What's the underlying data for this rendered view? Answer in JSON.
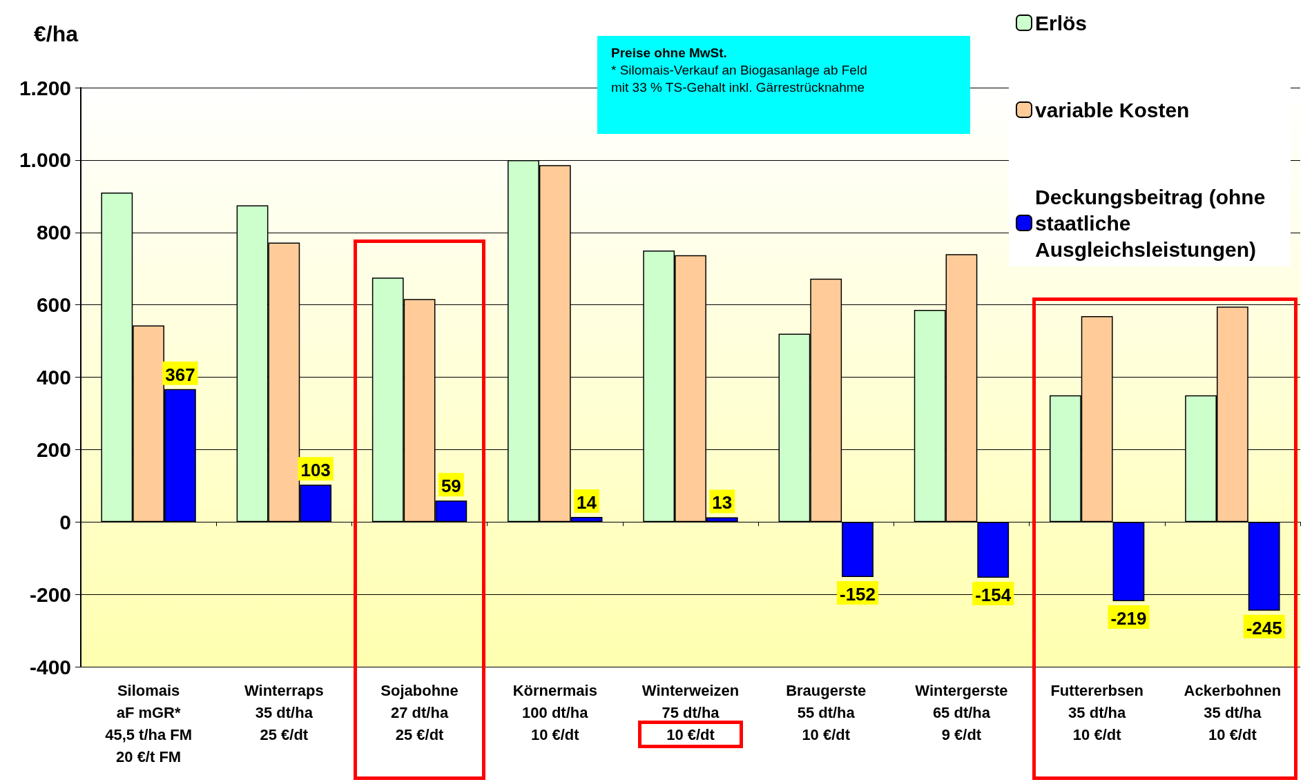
{
  "chart_data": {
    "type": "bar",
    "ylabel": "€/ha",
    "categories": [
      "Silomais\naF mGR*\n45,5 t/ha FM\n20 €/t FM",
      "Winterraps\n35 dt/ha\n25 €/dt",
      "Sojabohne\n27 dt/ha\n25 €/dt",
      "Körnermais\n100 dt/ha\n10 €/dt",
      "Winterweizen\n75 dt/ha\n10 €/dt",
      "Braugerste\n55 dt/ha\n10 €/dt",
      "Wintergerste\n65 dt/ha\n9 €/dt",
      "Futtererbsen\n35 dt/ha\n10 €/dt",
      "Ackerbohnen\n35 dt/ha\n10 €/dt"
    ],
    "series": [
      {
        "name": "Erlös",
        "color": "#ccffcc",
        "values": [
          910,
          875,
          675,
          1000,
          750,
          520,
          586,
          350,
          350
        ]
      },
      {
        "name": "variable Kosten",
        "color": "#ffcc99",
        "values": [
          543,
          772,
          616,
          986,
          737,
          672,
          740,
          569,
          595
        ]
      },
      {
        "name": "Deckungsbeitrag (ohne staatliche Ausgleichsleistungen)",
        "color": "#0000ff",
        "values": [
          367,
          103,
          59,
          14,
          13,
          -152,
          -154,
          -219,
          -245
        ],
        "value_labels": [
          "367",
          "103",
          "59",
          "14",
          "13",
          "-152",
          "-154",
          "-219",
          "-245"
        ]
      }
    ],
    "ylim": [
      -400,
      1200
    ],
    "yticks": [
      -400,
      -200,
      0,
      200,
      400,
      600,
      800,
      {
        "value": 1000,
        "label": "1.000"
      },
      {
        "value": 1200,
        "label": "1.200"
      }
    ],
    "grid": "y",
    "legend": "top right",
    "annotations": [
      "Preise ohne MwSt.",
      "* Silomais-Verkauf an Biogasanlage ab Feld\nmit 33 % TS-Gehalt inkl. Gärrestrücknahme"
    ]
  }
}
